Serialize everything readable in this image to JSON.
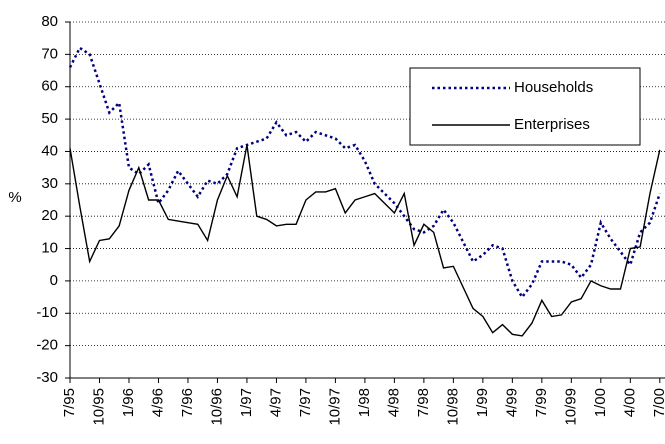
{
  "chart_data": {
    "type": "line",
    "y_label": "%",
    "categories": [
      "7/95",
      null,
      null,
      "10/95",
      null,
      null,
      "1/96",
      null,
      null,
      "4/96",
      null,
      null,
      "7/96",
      null,
      null,
      "10/96",
      null,
      null,
      "1/97",
      null,
      null,
      "4/97",
      null,
      null,
      "7/97",
      null,
      null,
      "10/97",
      null,
      null,
      "1/98",
      null,
      null,
      "4/98",
      null,
      null,
      "7/98",
      null,
      null,
      "10/98",
      null,
      null,
      "1/99",
      null,
      null,
      "4/99",
      null,
      null,
      "7/99",
      null,
      null,
      "10/99",
      null,
      null,
      "1/00",
      null,
      null,
      "4/00",
      null,
      null,
      "7/00"
    ],
    "series": [
      {
        "name": "Households",
        "color": "#000080",
        "style": "dotted",
        "values": [
          66,
          72,
          70,
          61,
          52,
          55,
          35,
          33,
          36,
          24,
          28,
          34,
          30,
          26,
          31,
          30,
          33,
          41,
          42,
          43,
          44,
          49,
          45,
          46,
          43,
          46,
          45,
          44,
          41,
          42,
          37,
          30,
          27,
          24,
          20,
          16,
          15,
          17,
          22,
          18,
          12,
          6,
          8,
          11,
          10,
          0,
          -5,
          -1,
          6,
          6,
          6,
          5,
          1,
          5,
          18,
          13,
          9,
          5,
          15,
          18,
          27
        ]
      },
      {
        "name": "Enterprises",
        "color": "#000000",
        "style": "solid",
        "values": [
          41,
          23,
          6,
          12.5,
          13,
          17,
          28,
          35,
          25,
          25,
          19,
          18.5,
          18,
          17.5,
          12.5,
          25,
          32.5,
          26,
          42,
          20,
          19,
          17,
          17.5,
          17.5,
          25,
          27.5,
          27.5,
          28.5,
          21,
          25,
          26,
          27,
          24,
          21,
          27,
          11,
          17.5,
          15,
          4,
          4.5,
          -2,
          -8.5,
          -11,
          -16,
          -13.5,
          -16.5,
          -17,
          -13,
          -6,
          -11,
          -10.5,
          -6.5,
          -5.5,
          0,
          -1.5,
          -2.5,
          -2.5,
          10,
          10.5,
          27,
          40.5
        ]
      }
    ],
    "ylim": [
      -30,
      80
    ],
    "yticks": [
      -30,
      -20,
      -10,
      0,
      10,
      20,
      30,
      40,
      50,
      60,
      70,
      80
    ],
    "grid": true,
    "legend": "upper right"
  }
}
